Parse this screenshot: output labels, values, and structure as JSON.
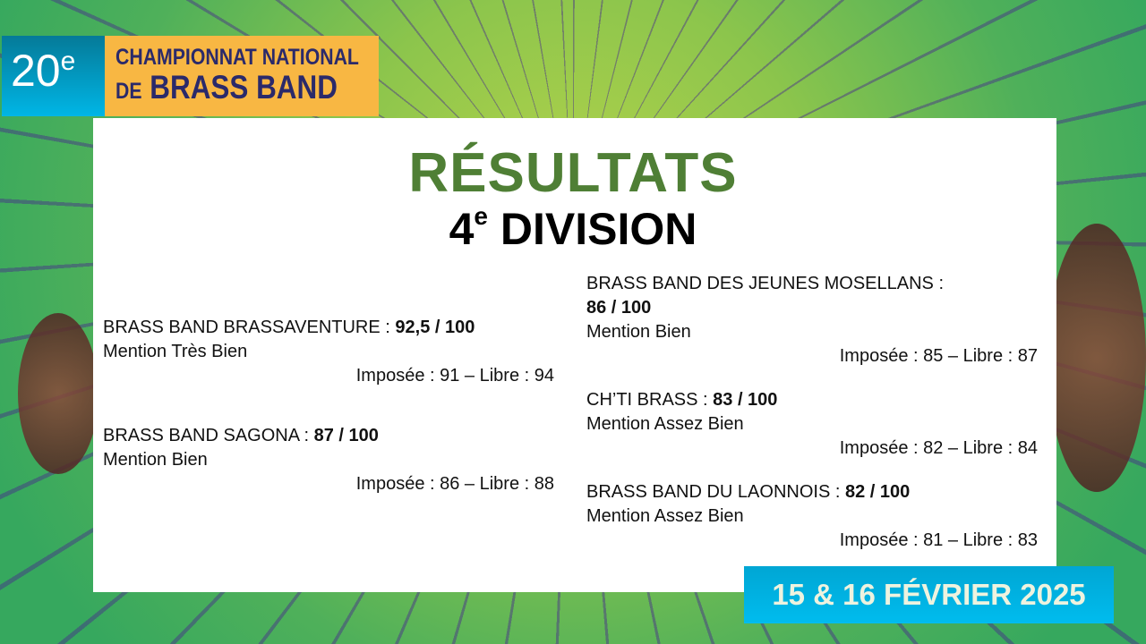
{
  "header": {
    "edition": "20",
    "edition_suffix": "e",
    "line1": "CHAMPIONNAT NATIONAL",
    "line2_prefix": "DE",
    "line2": "BRASS BAND"
  },
  "title": "RÉSULTATS",
  "division_number": "4",
  "division_suffix": "e",
  "division_label": "DIVISION",
  "results_left": [
    {
      "name": "BRASS BAND BRASSAVENTURE : ",
      "score": "92,5 / 100",
      "mention": "Mention Très Bien",
      "detail": "Imposée : 91 – Libre : 94"
    },
    {
      "name": "BRASS BAND SAGONA : ",
      "score": "87 / 100",
      "mention": "Mention Bien",
      "detail": "Imposée : 86 – Libre : 88"
    }
  ],
  "results_right": [
    {
      "name": "BRASS BAND DES JEUNES MOSELLANS :",
      "score": "86 / 100",
      "mention": "Mention Bien",
      "detail": "Imposée : 85 – Libre : 87"
    },
    {
      "name": "CH’TI BRASS : ",
      "score": "83 / 100",
      "mention": "Mention Assez Bien",
      "detail": "Imposée : 82 – Libre : 84"
    },
    {
      "name": "BRASS BAND DU LAONNOIS : ",
      "score": "82 / 100",
      "mention": "Mention Assez Bien",
      "detail": "Imposée : 81 – Libre : 83"
    }
  ],
  "date": "15 & 16 FÉVRIER 2025",
  "colors": {
    "title": "#4f7f35",
    "banner_blue": "#00b6e6",
    "banner_orange": "#f8b743",
    "text_navy": "#2b2a6a"
  }
}
